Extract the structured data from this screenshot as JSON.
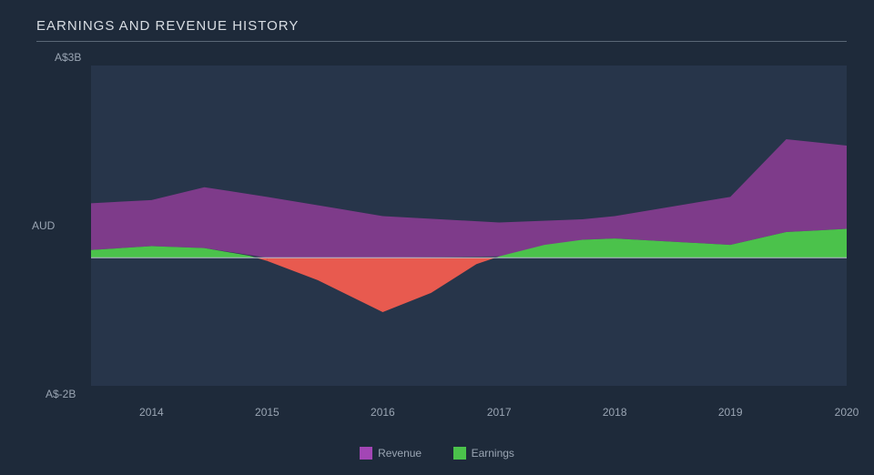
{
  "chart": {
    "type": "area",
    "title": "EARNINGS AND REVENUE HISTORY",
    "background_color": "#1e2a3a",
    "title_color": "#d8dde3",
    "title_fontsize": 15,
    "label_color": "#9aa5b3",
    "label_fontsize": 12,
    "divider_color": "#5a6776",
    "y_axis": {
      "label": "AUD",
      "top_tick": "A$3B",
      "bottom_tick": "A$-2B",
      "min": -2,
      "max": 3
    },
    "x_axis": {
      "labels": [
        "2014",
        "2015",
        "2016",
        "2017",
        "2018",
        "2019",
        "2020"
      ],
      "positions_pct": [
        8,
        23.3,
        38.6,
        54,
        69.3,
        84.6,
        100
      ]
    },
    "series": [
      {
        "name": "Revenue",
        "color": "#7e3b8a",
        "legend_swatch": "#a346b5",
        "baseline": "earnings",
        "x": [
          0,
          8,
          15,
          23.3,
          38.6,
          54,
          65,
          69.3,
          84.6,
          92,
          100
        ],
        "y": [
          0.85,
          0.9,
          1.1,
          0.95,
          0.65,
          0.55,
          0.6,
          0.65,
          0.95,
          1.85,
          1.75
        ]
      },
      {
        "name": "Earnings",
        "color_positive": "#4bc24b",
        "color_negative": "#e85a4f",
        "legend_swatch": "#4bc24b",
        "baseline": 0,
        "x": [
          0,
          8,
          15,
          21,
          23.3,
          30,
          38.6,
          45,
          51,
          54,
          60,
          65,
          69.3,
          84.6,
          92,
          100
        ],
        "y": [
          0.12,
          0.18,
          0.15,
          0.03,
          -0.05,
          -0.35,
          -0.85,
          -0.55,
          -0.1,
          0.02,
          0.2,
          0.28,
          0.3,
          0.2,
          0.4,
          0.45
        ]
      }
    ],
    "zero_line_color": "#b8c0cc",
    "plot_inner_bg": "#27354a"
  }
}
